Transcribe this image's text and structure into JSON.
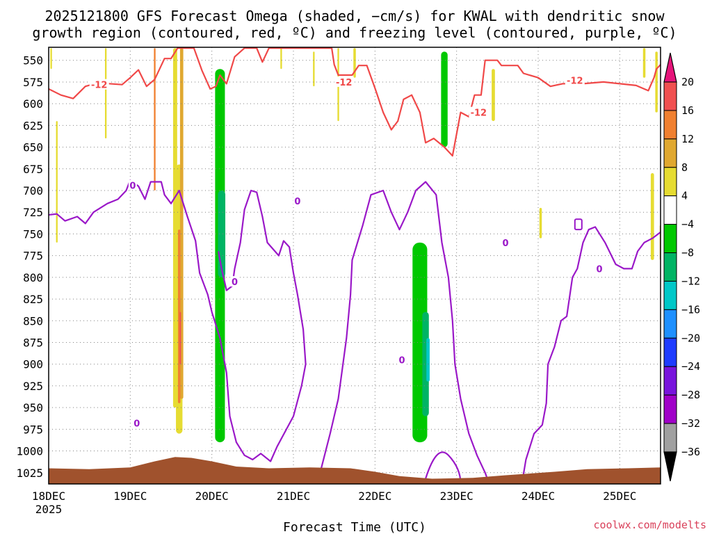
{
  "chart_data": {
    "type": "heatmap",
    "title_line1": "2025121800 GFS Forecast Omega (shaded, −cm/s) for KWAL with dendritic snow",
    "title_line2": "growth region (contoured, red, ºC) and freezing level (contoured, purple, ºC)",
    "xlabel": "Forecast Time (UTC)",
    "credit": "coolwx.com/modelts",
    "x_ticks": [
      "18DEC",
      "19DEC",
      "20DEC",
      "21DEC",
      "22DEC",
      "23DEC",
      "24DEC",
      "25DEC"
    ],
    "x_year": "2025",
    "x_range_days": [
      0,
      7.5
    ],
    "y_ticks": [
      550,
      575,
      600,
      625,
      650,
      675,
      700,
      725,
      750,
      775,
      800,
      825,
      850,
      875,
      900,
      925,
      950,
      975,
      1000,
      1025
    ],
    "y_range_hpa": [
      535,
      1038
    ],
    "grid": true,
    "colorbar": {
      "ticks": [
        "20",
        "16",
        "12",
        "8",
        "4",
        "−4",
        "−8",
        "−12",
        "−16",
        "−20",
        "−24",
        "−28",
        "−32",
        "−36"
      ],
      "bands": [
        {
          "from": 16,
          "to": 20,
          "color": "#f05050"
        },
        {
          "from": 12,
          "to": 16,
          "color": "#f08030"
        },
        {
          "from": 8,
          "to": 12,
          "color": "#e0a830"
        },
        {
          "from": 4,
          "to": 8,
          "color": "#e6dc32"
        },
        {
          "from": -4,
          "to": 4,
          "color": "#ffffff"
        },
        {
          "from": -8,
          "to": -4,
          "color": "#00c800"
        },
        {
          "from": -12,
          "to": -8,
          "color": "#00b464"
        },
        {
          "from": -16,
          "to": -12,
          "color": "#00c8c8"
        },
        {
          "from": -20,
          "to": -16,
          "color": "#1e90ff"
        },
        {
          "from": -24,
          "to": -20,
          "color": "#1e3cff"
        },
        {
          "from": -28,
          "to": -24,
          "color": "#7814dc"
        },
        {
          "from": -32,
          "to": -28,
          "color": "#a000c8"
        },
        {
          "from": -36,
          "to": -32,
          "color": "#a0a0a0"
        }
      ],
      "over_color": "#e6147a",
      "under_color": "#000000"
    },
    "colors": {
      "terrain": "#a0522d",
      "dgz_contour": "#f04848",
      "freezing_contour": "#9a18c8",
      "grid": "#808080"
    },
    "contour_labels": [
      {
        "text": "-12",
        "day": 0.62,
        "p": 578,
        "kind": "dgz"
      },
      {
        "text": "-12",
        "day": 3.62,
        "p": 575,
        "kind": "dgz"
      },
      {
        "text": "-12",
        "day": 5.27,
        "p": 610,
        "kind": "dgz"
      },
      {
        "text": "-12",
        "day": 6.45,
        "p": 573,
        "kind": "dgz"
      },
      {
        "text": "0",
        "day": 1.03,
        "p": 694,
        "kind": "fz"
      },
      {
        "text": "0",
        "day": 2.28,
        "p": 805,
        "kind": "fz"
      },
      {
        "text": "0",
        "day": 3.05,
        "p": 712,
        "kind": "fz"
      },
      {
        "text": "0",
        "day": 1.08,
        "p": 968,
        "kind": "fz"
      },
      {
        "text": "0",
        "day": 4.33,
        "p": 895,
        "kind": "fz"
      },
      {
        "text": "0",
        "day": 5.6,
        "p": 760,
        "kind": "fz"
      },
      {
        "text": "0",
        "day": 6.75,
        "p": 790,
        "kind": "fz"
      }
    ],
    "terrain_surface_hpa": [
      [
        0,
        1020
      ],
      [
        0.5,
        1021
      ],
      [
        1.0,
        1019
      ],
      [
        1.3,
        1012
      ],
      [
        1.55,
        1007
      ],
      [
        1.75,
        1008
      ],
      [
        2.0,
        1012
      ],
      [
        2.3,
        1018
      ],
      [
        2.7,
        1020
      ],
      [
        3.2,
        1019
      ],
      [
        3.7,
        1020
      ],
      [
        4.0,
        1024
      ],
      [
        4.3,
        1029
      ],
      [
        4.7,
        1032
      ],
      [
        5.2,
        1031
      ],
      [
        5.6,
        1028
      ],
      [
        6.2,
        1024
      ],
      [
        6.6,
        1021
      ],
      [
        7.1,
        1020
      ],
      [
        7.5,
        1019
      ]
    ],
    "dgz_minus12_line": [
      [
        0,
        583
      ],
      [
        0.15,
        590
      ],
      [
        0.3,
        594
      ],
      [
        0.45,
        580
      ],
      [
        0.6,
        576
      ],
      [
        0.9,
        578
      ],
      [
        1.0,
        570
      ],
      [
        1.1,
        561
      ],
      [
        1.2,
        580
      ],
      [
        1.3,
        572
      ],
      [
        1.42,
        548
      ],
      [
        1.5,
        548
      ],
      [
        1.58,
        536
      ],
      [
        1.78,
        536
      ],
      [
        1.88,
        562
      ],
      [
        1.98,
        583
      ],
      [
        2.05,
        580
      ],
      [
        2.1,
        567
      ],
      [
        2.18,
        577
      ],
      [
        2.28,
        546
      ],
      [
        2.4,
        536
      ],
      [
        2.55,
        536
      ],
      [
        2.62,
        552
      ],
      [
        2.7,
        536
      ],
      [
        3.47,
        536
      ],
      [
        3.5,
        555
      ],
      [
        3.55,
        567
      ],
      [
        3.72,
        567
      ],
      [
        3.8,
        556
      ],
      [
        3.9,
        556
      ],
      [
        4.0,
        582
      ],
      [
        4.1,
        610
      ],
      [
        4.2,
        630
      ],
      [
        4.28,
        620
      ],
      [
        4.35,
        595
      ],
      [
        4.45,
        590
      ],
      [
        4.55,
        610
      ],
      [
        4.62,
        645
      ],
      [
        4.72,
        640
      ],
      [
        4.85,
        650
      ],
      [
        4.95,
        660
      ],
      [
        5.05,
        610
      ],
      [
        5.15,
        615
      ],
      [
        5.22,
        590
      ],
      [
        5.3,
        590
      ],
      [
        5.35,
        550
      ],
      [
        5.5,
        550
      ],
      [
        5.55,
        556
      ],
      [
        5.75,
        556
      ],
      [
        5.82,
        565
      ],
      [
        6.0,
        570
      ],
      [
        6.15,
        580
      ],
      [
        6.3,
        577
      ],
      [
        6.55,
        577
      ],
      [
        6.8,
        575
      ],
      [
        7.0,
        577
      ],
      [
        7.2,
        579
      ],
      [
        7.35,
        585
      ],
      [
        7.42,
        570
      ],
      [
        7.45,
        560
      ],
      [
        7.5,
        555
      ]
    ],
    "freezing_line": [
      [
        0,
        728
      ],
      [
        0.1,
        727
      ],
      [
        0.2,
        735
      ],
      [
        0.35,
        730
      ],
      [
        0.45,
        738
      ],
      [
        0.55,
        725
      ],
      [
        0.72,
        715
      ],
      [
        0.85,
        710
      ],
      [
        0.95,
        700
      ],
      [
        1.0,
        688
      ],
      [
        1.1,
        695
      ],
      [
        1.18,
        710
      ],
      [
        1.25,
        690
      ],
      [
        1.38,
        690
      ],
      [
        1.42,
        705
      ],
      [
        1.5,
        715
      ],
      [
        1.6,
        700
      ],
      [
        1.7,
        730
      ],
      [
        1.8,
        758
      ],
      [
        1.85,
        795
      ],
      [
        1.95,
        820
      ],
      [
        2.0,
        840
      ],
      [
        2.1,
        870
      ],
      [
        2.18,
        910
      ],
      [
        2.22,
        960
      ],
      [
        2.3,
        990
      ],
      [
        2.4,
        1005
      ],
      [
        2.5,
        1010
      ],
      [
        2.6,
        1003
      ],
      [
        2.72,
        1012
      ],
      [
        2.8,
        995
      ],
      [
        3.0,
        960
      ],
      [
        3.1,
        925
      ],
      [
        3.15,
        900
      ],
      [
        3.12,
        860
      ],
      [
        3.05,
        820
      ],
      [
        3.0,
        795
      ],
      [
        2.95,
        765
      ],
      [
        2.88,
        758
      ],
      [
        2.82,
        775
      ],
      [
        2.68,
        760
      ],
      [
        2.62,
        730
      ],
      [
        2.55,
        702
      ],
      [
        2.48,
        700
      ],
      [
        2.4,
        722
      ],
      [
        2.35,
        760
      ],
      [
        2.28,
        790
      ],
      [
        2.25,
        810
      ],
      [
        2.18,
        815
      ],
      [
        2.12,
        790
      ],
      [
        2.08,
        770
      ]
    ],
    "freezing_line_2": [
      [
        3.3,
        1035
      ],
      [
        3.45,
        980
      ],
      [
        3.55,
        940
      ],
      [
        3.65,
        870
      ],
      [
        3.7,
        820
      ],
      [
        3.72,
        780
      ],
      [
        3.85,
        740
      ],
      [
        3.95,
        705
      ],
      [
        4.1,
        700
      ],
      [
        4.2,
        725
      ],
      [
        4.3,
        745
      ],
      [
        4.4,
        725
      ],
      [
        4.5,
        700
      ],
      [
        4.62,
        690
      ],
      [
        4.75,
        705
      ],
      [
        4.82,
        760
      ],
      [
        4.9,
        800
      ],
      [
        4.95,
        850
      ],
      [
        4.98,
        900
      ],
      [
        5.05,
        940
      ],
      [
        5.15,
        980
      ],
      [
        5.25,
        1005
      ],
      [
        5.35,
        1025
      ],
      [
        5.4,
        1038
      ]
    ],
    "freezing_line_3": [
      [
        5.8,
        1038
      ],
      [
        5.85,
        1010
      ],
      [
        5.95,
        980
      ],
      [
        6.05,
        970
      ],
      [
        6.1,
        945
      ],
      [
        6.12,
        900
      ],
      [
        6.2,
        880
      ],
      [
        6.28,
        850
      ],
      [
        6.35,
        845
      ],
      [
        6.42,
        800
      ],
      [
        6.48,
        790
      ],
      [
        6.55,
        760
      ],
      [
        6.62,
        745
      ],
      [
        6.7,
        742
      ],
      [
        6.82,
        760
      ],
      [
        6.95,
        785
      ],
      [
        7.05,
        790
      ],
      [
        7.15,
        790
      ],
      [
        7.22,
        770
      ],
      [
        7.3,
        760
      ],
      [
        7.4,
        755
      ],
      [
        7.5,
        748
      ]
    ],
    "omega_features": [
      {
        "band": 4,
        "cx": 1.05,
        "p0": 545,
        "p1": 980,
        "w": 0.18
      },
      {
        "band": 4,
        "cx": 1.75,
        "p0": 536,
        "p1": 1000,
        "w": 0.12
      },
      {
        "band": 4,
        "cx": 2.15,
        "p0": 536,
        "p1": 1005,
        "w": 0.22
      },
      {
        "band": 5,
        "cx": 2.1,
        "p0": 560,
        "p1": 990,
        "w": 0.12
      },
      {
        "band": 6,
        "cx": 2.12,
        "p0": 700,
        "p1": 800,
        "w": 0.09
      },
      {
        "band": 4,
        "cx": 2.55,
        "p0": 540,
        "p1": 950,
        "w": 0.16
      },
      {
        "band": 4,
        "cx": 3.95,
        "p0": 536,
        "p1": 960,
        "w": 0.22
      },
      {
        "band": 4,
        "cx": 4.25,
        "p0": 560,
        "p1": 985,
        "w": 0.3
      },
      {
        "band": 4,
        "cx": 4.65,
        "p0": 536,
        "p1": 1000,
        "w": 0.22
      },
      {
        "band": 5,
        "cx": 4.55,
        "p0": 760,
        "p1": 990,
        "w": 0.18
      },
      {
        "band": 6,
        "cx": 4.62,
        "p0": 840,
        "p1": 960,
        "w": 0.08
      },
      {
        "band": 7,
        "cx": 4.65,
        "p0": 870,
        "p1": 920,
        "w": 0.04
      },
      {
        "band": 5,
        "cx": 4.85,
        "p0": 540,
        "p1": 650,
        "w": 0.08
      },
      {
        "band": 4,
        "cx": 5.5,
        "p0": 860,
        "p1": 975,
        "w": 0.08
      },
      {
        "band": 4,
        "cx": 5.68,
        "p0": 605,
        "p1": 655,
        "w": 0.03
      },
      {
        "band": 4,
        "cx": 5.55,
        "p0": 745,
        "p1": 800,
        "w": 0.04
      },
      {
        "band": 4,
        "cx": 6.38,
        "p0": 815,
        "p1": 855,
        "w": 0.025
      },
      {
        "band": 4,
        "cx": 7.5,
        "p0": 640,
        "p1": 790,
        "w": 0.04
      },
      {
        "band": 3,
        "cx": 1.55,
        "p0": 536,
        "p1": 950,
        "w": 0.05
      },
      {
        "band": 3,
        "cx": 1.6,
        "p0": 670,
        "p1": 980,
        "w": 0.08
      },
      {
        "band": 2,
        "cx": 1.63,
        "p0": 536,
        "p1": 940,
        "w": 0.04
      },
      {
        "band": 1,
        "cx": 1.6,
        "p0": 745,
        "p1": 945,
        "w": 0.03
      },
      {
        "band": 1,
        "cx": 1.3,
        "p0": 536,
        "p1": 700,
        "w": 0.02
      },
      {
        "band": 0,
        "cx": 1.61,
        "p0": 840,
        "p1": 900,
        "w": 0.01
      },
      {
        "band": 3,
        "cx": 0.03,
        "p0": 536,
        "p1": 560,
        "w": 0.02
      },
      {
        "band": 3,
        "cx": 0.1,
        "p0": 620,
        "p1": 760,
        "w": 0.02
      },
      {
        "band": 3,
        "cx": 0.7,
        "p0": 536,
        "p1": 640,
        "w": 0.02
      },
      {
        "band": 3,
        "cx": 3.55,
        "p0": 536,
        "p1": 620,
        "w": 0.02
      },
      {
        "band": 3,
        "cx": 3.75,
        "p0": 536,
        "p1": 570,
        "w": 0.03
      },
      {
        "band": 3,
        "cx": 5.45,
        "p0": 560,
        "p1": 620,
        "w": 0.04
      },
      {
        "band": 3,
        "cx": 6.03,
        "p0": 720,
        "p1": 755,
        "w": 0.03
      },
      {
        "band": 3,
        "cx": 7.3,
        "p0": 536,
        "p1": 570,
        "w": 0.03
      },
      {
        "band": 3,
        "cx": 7.45,
        "p0": 540,
        "p1": 610,
        "w": 0.03
      },
      {
        "band": 3,
        "cx": 7.4,
        "p0": 680,
        "p1": 780,
        "w": 0.04
      },
      {
        "band": 2,
        "cx": 7.5,
        "p0": 740,
        "p1": 780,
        "w": 0.02
      },
      {
        "band": 1,
        "cx": 7.52,
        "p0": 536,
        "p1": 560,
        "w": 0.01
      },
      {
        "band": 3,
        "cx": 2.85,
        "p0": 536,
        "p1": 560,
        "w": 0.02
      },
      {
        "band": 3,
        "cx": 3.25,
        "p0": 540,
        "p1": 580,
        "w": 0.02
      }
    ]
  }
}
